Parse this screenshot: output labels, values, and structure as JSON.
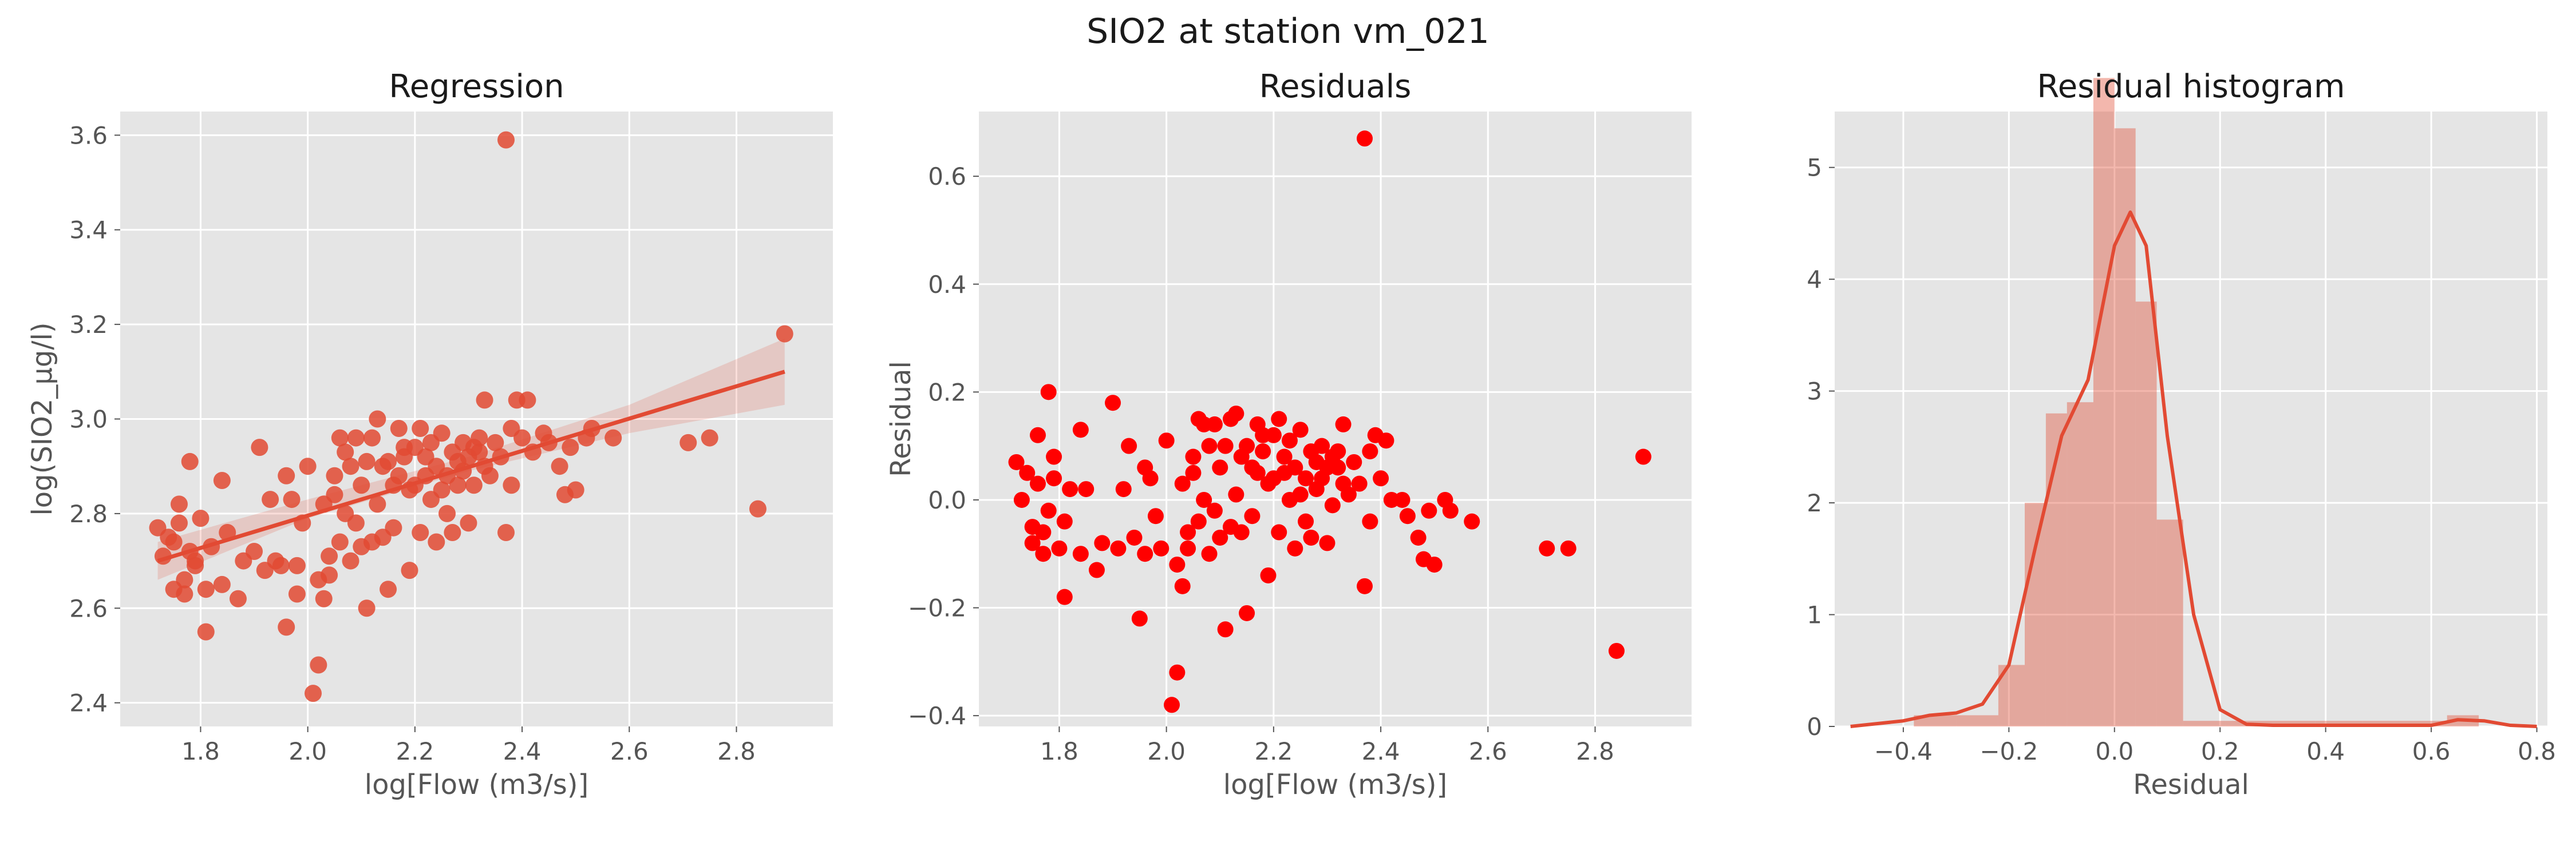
{
  "suptitle": "SIO2 at station vm_021",
  "colors": {
    "panel_bg": "#e5e5e5",
    "grid": "#ffffff",
    "accent": "#e24a33",
    "resid_points": "#ff0000"
  },
  "chart_data": [
    {
      "type": "scatter",
      "title": "Regression",
      "xlabel": "log[Flow (m3/s)]",
      "ylabel": "log(SIO2_µg/l)",
      "xlim": [
        1.65,
        2.98
      ],
      "ylim": [
        2.35,
        3.65
      ],
      "xticks": [
        1.8,
        2.0,
        2.2,
        2.4,
        2.6,
        2.8
      ],
      "yticks": [
        2.4,
        2.6,
        2.8,
        3.0,
        3.2,
        3.4,
        3.6
      ],
      "grid": true,
      "regression_line": {
        "x": [
          1.72,
          2.89
        ],
        "y": [
          2.7,
          3.1
        ]
      },
      "confidence_band": {
        "x": [
          1.72,
          2.0,
          2.3,
          2.6,
          2.89
        ],
        "lower": [
          2.66,
          2.79,
          2.89,
          2.97,
          3.03
        ],
        "upper": [
          2.74,
          2.83,
          2.92,
          3.03,
          3.17
        ]
      },
      "points": [
        [
          1.72,
          2.77
        ],
        [
          1.73,
          2.71
        ],
        [
          1.74,
          2.75
        ],
        [
          1.75,
          2.74
        ],
        [
          1.76,
          2.78
        ],
        [
          1.75,
          2.64
        ],
        [
          1.76,
          2.82
        ],
        [
          1.77,
          2.66
        ],
        [
          1.78,
          2.72
        ],
        [
          1.78,
          2.91
        ],
        [
          1.79,
          2.7
        ],
        [
          1.77,
          2.63
        ],
        [
          1.8,
          2.79
        ],
        [
          1.79,
          2.69
        ],
        [
          1.81,
          2.55
        ],
        [
          1.82,
          2.73
        ],
        [
          1.81,
          2.64
        ],
        [
          1.84,
          2.87
        ],
        [
          1.85,
          2.76
        ],
        [
          1.84,
          2.65
        ],
        [
          1.87,
          2.62
        ],
        [
          1.88,
          2.7
        ],
        [
          1.9,
          2.72
        ],
        [
          1.91,
          2.94
        ],
        [
          1.92,
          2.68
        ],
        [
          1.93,
          2.83
        ],
        [
          1.94,
          2.7
        ],
        [
          1.95,
          2.69
        ],
        [
          1.96,
          2.56
        ],
        [
          1.96,
          2.88
        ],
        [
          1.97,
          2.83
        ],
        [
          1.98,
          2.69
        ],
        [
          1.98,
          2.63
        ],
        [
          1.99,
          2.78
        ],
        [
          2.0,
          2.9
        ],
        [
          2.01,
          2.42
        ],
        [
          2.02,
          2.48
        ],
        [
          2.02,
          2.66
        ],
        [
          2.03,
          2.82
        ],
        [
          2.03,
          2.62
        ],
        [
          2.04,
          2.71
        ],
        [
          2.04,
          2.67
        ],
        [
          2.05,
          2.84
        ],
        [
          2.05,
          2.88
        ],
        [
          2.06,
          2.96
        ],
        [
          2.06,
          2.74
        ],
        [
          2.07,
          2.8
        ],
        [
          2.07,
          2.93
        ],
        [
          2.08,
          2.9
        ],
        [
          2.08,
          2.7
        ],
        [
          2.09,
          2.96
        ],
        [
          2.09,
          2.78
        ],
        [
          2.1,
          2.73
        ],
        [
          2.1,
          2.86
        ],
        [
          2.11,
          2.6
        ],
        [
          2.11,
          2.91
        ],
        [
          2.12,
          2.74
        ],
        [
          2.12,
          2.96
        ],
        [
          2.13,
          3.0
        ],
        [
          2.13,
          2.82
        ],
        [
          2.14,
          2.75
        ],
        [
          2.14,
          2.9
        ],
        [
          2.15,
          2.91
        ],
        [
          2.15,
          2.64
        ],
        [
          2.16,
          2.77
        ],
        [
          2.16,
          2.86
        ],
        [
          2.17,
          2.98
        ],
        [
          2.17,
          2.88
        ],
        [
          2.18,
          2.94
        ],
        [
          2.18,
          2.92
        ],
        [
          2.19,
          2.85
        ],
        [
          2.19,
          2.68
        ],
        [
          2.2,
          2.86
        ],
        [
          2.2,
          2.94
        ],
        [
          2.21,
          2.98
        ],
        [
          2.21,
          2.76
        ],
        [
          2.22,
          2.92
        ],
        [
          2.22,
          2.88
        ],
        [
          2.23,
          2.83
        ],
        [
          2.23,
          2.95
        ],
        [
          2.24,
          2.74
        ],
        [
          2.24,
          2.9
        ],
        [
          2.25,
          2.85
        ],
        [
          2.25,
          2.97
        ],
        [
          2.26,
          2.88
        ],
        [
          2.26,
          2.8
        ],
        [
          2.27,
          2.93
        ],
        [
          2.27,
          2.76
        ],
        [
          2.28,
          2.91
        ],
        [
          2.28,
          2.86
        ],
        [
          2.29,
          2.95
        ],
        [
          2.29,
          2.89
        ],
        [
          2.3,
          2.92
        ],
        [
          2.3,
          2.78
        ],
        [
          2.31,
          2.94
        ],
        [
          2.31,
          2.86
        ],
        [
          2.32,
          2.93
        ],
        [
          2.32,
          2.96
        ],
        [
          2.33,
          2.9
        ],
        [
          2.33,
          3.04
        ],
        [
          2.34,
          2.88
        ],
        [
          2.35,
          2.95
        ],
        [
          2.36,
          2.92
        ],
        [
          2.37,
          2.76
        ],
        [
          2.37,
          3.59
        ],
        [
          2.38,
          2.86
        ],
        [
          2.38,
          2.98
        ],
        [
          2.39,
          3.04
        ],
        [
          2.4,
          2.96
        ],
        [
          2.41,
          3.04
        ],
        [
          2.42,
          2.93
        ],
        [
          2.44,
          2.97
        ],
        [
          2.45,
          2.95
        ],
        [
          2.47,
          2.9
        ],
        [
          2.48,
          2.84
        ],
        [
          2.49,
          2.94
        ],
        [
          2.5,
          2.85
        ],
        [
          2.52,
          2.96
        ],
        [
          2.53,
          2.98
        ],
        [
          2.57,
          2.96
        ],
        [
          2.71,
          2.95
        ],
        [
          2.75,
          2.96
        ],
        [
          2.84,
          2.81
        ],
        [
          2.89,
          3.18
        ]
      ]
    },
    {
      "type": "scatter",
      "title": "Residuals",
      "xlabel": "log[Flow (m3/s)]",
      "ylabel": "Residual",
      "xlim": [
        1.65,
        2.98
      ],
      "ylim": [
        -0.42,
        0.72
      ],
      "xticks": [
        1.8,
        2.0,
        2.2,
        2.4,
        2.6,
        2.8
      ],
      "yticks": [
        -0.4,
        -0.2,
        0.0,
        0.2,
        0.4,
        0.6
      ],
      "grid": true,
      "points": [
        [
          1.72,
          0.07
        ],
        [
          1.73,
          0.0
        ],
        [
          1.74,
          0.05
        ],
        [
          1.75,
          -0.05
        ],
        [
          1.76,
          0.12
        ],
        [
          1.75,
          -0.08
        ],
        [
          1.76,
          0.03
        ],
        [
          1.77,
          -0.1
        ],
        [
          1.78,
          0.2
        ],
        [
          1.78,
          -0.02
        ],
        [
          1.79,
          0.08
        ],
        [
          1.77,
          -0.06
        ],
        [
          1.8,
          -0.09
        ],
        [
          1.79,
          0.04
        ],
        [
          1.81,
          -0.18
        ],
        [
          1.82,
          0.02
        ],
        [
          1.81,
          -0.04
        ],
        [
          1.84,
          0.13
        ],
        [
          1.85,
          0.02
        ],
        [
          1.84,
          -0.1
        ],
        [
          1.87,
          -0.13
        ],
        [
          1.88,
          -0.08
        ],
        [
          1.9,
          0.18
        ],
        [
          1.91,
          -0.09
        ],
        [
          1.92,
          0.02
        ],
        [
          1.93,
          0.1
        ],
        [
          1.94,
          -0.07
        ],
        [
          1.95,
          -0.22
        ],
        [
          1.96,
          0.06
        ],
        [
          1.96,
          -0.1
        ],
        [
          1.97,
          0.04
        ],
        [
          1.98,
          -0.03
        ],
        [
          1.99,
          -0.09
        ],
        [
          2.0,
          0.11
        ],
        [
          2.01,
          -0.38
        ],
        [
          2.02,
          -0.32
        ],
        [
          2.02,
          -0.12
        ],
        [
          2.03,
          0.03
        ],
        [
          2.03,
          -0.16
        ],
        [
          2.04,
          -0.06
        ],
        [
          2.04,
          -0.09
        ],
        [
          2.05,
          0.05
        ],
        [
          2.05,
          0.08
        ],
        [
          2.06,
          0.15
        ],
        [
          2.06,
          -0.04
        ],
        [
          2.07,
          0.0
        ],
        [
          2.07,
          0.14
        ],
        [
          2.08,
          0.1
        ],
        [
          2.08,
          -0.1
        ],
        [
          2.09,
          0.14
        ],
        [
          2.09,
          -0.02
        ],
        [
          2.1,
          -0.07
        ],
        [
          2.1,
          0.06
        ],
        [
          2.11,
          -0.24
        ],
        [
          2.11,
          0.1
        ],
        [
          2.12,
          -0.05
        ],
        [
          2.12,
          0.15
        ],
        [
          2.13,
          0.16
        ],
        [
          2.13,
          0.01
        ],
        [
          2.14,
          -0.06
        ],
        [
          2.14,
          0.08
        ],
        [
          2.15,
          0.1
        ],
        [
          2.15,
          -0.21
        ],
        [
          2.16,
          -0.03
        ],
        [
          2.16,
          0.06
        ],
        [
          2.17,
          0.14
        ],
        [
          2.17,
          0.05
        ],
        [
          2.18,
          0.12
        ],
        [
          2.18,
          0.09
        ],
        [
          2.19,
          0.03
        ],
        [
          2.19,
          -0.14
        ],
        [
          2.2,
          0.04
        ],
        [
          2.2,
          0.12
        ],
        [
          2.21,
          0.15
        ],
        [
          2.21,
          -0.06
        ],
        [
          2.22,
          0.08
        ],
        [
          2.22,
          0.05
        ],
        [
          2.23,
          0.0
        ],
        [
          2.23,
          0.11
        ],
        [
          2.24,
          -0.09
        ],
        [
          2.24,
          0.06
        ],
        [
          2.25,
          0.01
        ],
        [
          2.25,
          0.13
        ],
        [
          2.26,
          0.04
        ],
        [
          2.26,
          -0.04
        ],
        [
          2.27,
          0.09
        ],
        [
          2.27,
          -0.07
        ],
        [
          2.28,
          0.07
        ],
        [
          2.28,
          0.02
        ],
        [
          2.29,
          0.1
        ],
        [
          2.29,
          0.04
        ],
        [
          2.3,
          0.06
        ],
        [
          2.3,
          -0.08
        ],
        [
          2.31,
          0.08
        ],
        [
          2.31,
          -0.01
        ],
        [
          2.32,
          0.06
        ],
        [
          2.32,
          0.09
        ],
        [
          2.33,
          0.03
        ],
        [
          2.33,
          0.14
        ],
        [
          2.34,
          0.01
        ],
        [
          2.35,
          0.07
        ],
        [
          2.36,
          0.03
        ],
        [
          2.37,
          -0.16
        ],
        [
          2.37,
          0.67
        ],
        [
          2.38,
          -0.04
        ],
        [
          2.38,
          0.09
        ],
        [
          2.39,
          0.12
        ],
        [
          2.4,
          0.04
        ],
        [
          2.41,
          0.11
        ],
        [
          2.42,
          0.0
        ],
        [
          2.44,
          0.0
        ],
        [
          2.45,
          -0.03
        ],
        [
          2.47,
          -0.07
        ],
        [
          2.48,
          -0.11
        ],
        [
          2.49,
          -0.02
        ],
        [
          2.5,
          -0.12
        ],
        [
          2.52,
          0.0
        ],
        [
          2.53,
          -0.02
        ],
        [
          2.57,
          -0.04
        ],
        [
          2.71,
          -0.09
        ],
        [
          2.75,
          -0.09
        ],
        [
          2.84,
          -0.28
        ],
        [
          2.89,
          0.08
        ]
      ]
    },
    {
      "type": "histogram",
      "title": "Residual histogram",
      "xlabel": "Residual",
      "ylabel": "",
      "xlim": [
        -0.53,
        0.82
      ],
      "ylim": [
        0,
        5.5
      ],
      "xticks": [
        -0.4,
        -0.2,
        0.0,
        0.2,
        0.4,
        0.6,
        0.8
      ],
      "yticks": [
        0,
        1,
        2,
        3,
        4,
        5
      ],
      "grid": true,
      "bin_edges": [
        -0.38,
        -0.3,
        -0.22,
        -0.17,
        -0.13,
        -0.09,
        -0.04,
        0.0,
        0.04,
        0.08,
        0.13,
        0.17,
        0.21,
        0.3,
        0.38,
        0.47,
        0.55,
        0.63,
        0.69
      ],
      "densities": [
        0.1,
        0.1,
        0.55,
        2.0,
        2.8,
        2.9,
        5.8,
        5.35,
        3.8,
        1.85,
        0.05,
        0.05,
        0.05,
        0.05,
        0.05,
        0.05,
        0.05,
        0.1
      ],
      "kde": {
        "x": [
          -0.5,
          -0.4,
          -0.35,
          -0.3,
          -0.25,
          -0.2,
          -0.15,
          -0.1,
          -0.05,
          0.0,
          0.03,
          0.06,
          0.1,
          0.15,
          0.2,
          0.25,
          0.3,
          0.4,
          0.5,
          0.6,
          0.65,
          0.7,
          0.75,
          0.8
        ],
        "y": [
          0.0,
          0.05,
          0.1,
          0.12,
          0.2,
          0.55,
          1.6,
          2.6,
          3.1,
          4.3,
          4.6,
          4.3,
          2.6,
          1.0,
          0.15,
          0.02,
          0.01,
          0.01,
          0.01,
          0.01,
          0.06,
          0.05,
          0.01,
          0.0
        ]
      }
    }
  ]
}
